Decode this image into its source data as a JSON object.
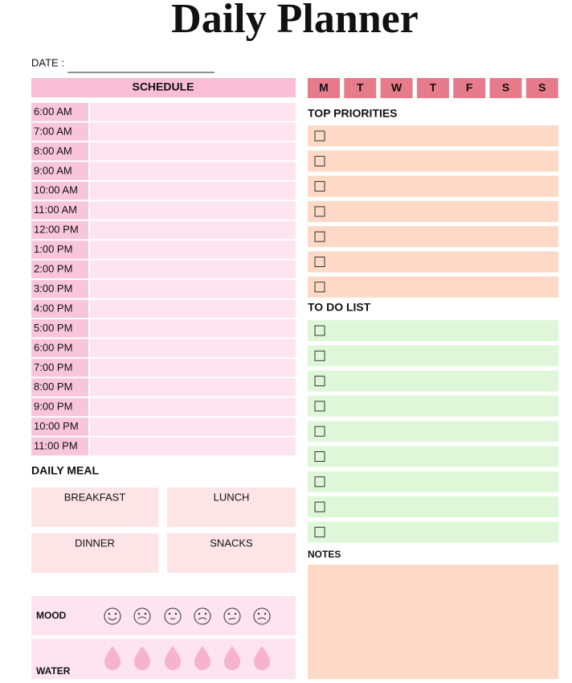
{
  "header": {
    "title": "Daily Planner"
  },
  "date": {
    "label": "DATE :"
  },
  "schedule": {
    "title": "SCHEDULE",
    "times": [
      "6:00 AM",
      "7:00 AM",
      "8:00 AM",
      "9:00 AM",
      "10:00 AM",
      "11:00 AM",
      "12:00 PM",
      "1:00 PM",
      "2:00 PM",
      "3:00 PM",
      "4:00 PM",
      "5:00 PM",
      "6:00 PM",
      "7:00 PM",
      "8:00 PM",
      "9:00 PM",
      "10:00 PM",
      "11:00 PM"
    ]
  },
  "days": [
    "M",
    "T",
    "W",
    "T",
    "F",
    "S",
    "S"
  ],
  "priorities": {
    "title": "TOP PRIORITIES"
  },
  "todo": {
    "title": "TO DO LIST"
  },
  "notes": {
    "title": "NOTES"
  },
  "meal": {
    "title": "DAILY MEAL",
    "items": [
      "BREAKFAST",
      "LUNCH",
      "DINNER",
      "SNACKS"
    ]
  },
  "mood": {
    "label": "MOOD"
  },
  "water": {
    "label": "WATER"
  }
}
